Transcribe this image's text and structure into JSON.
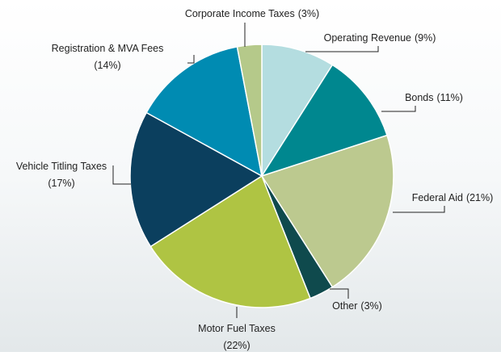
{
  "chart_data": {
    "type": "pie",
    "categories": [
      "Operating Revenue",
      "Bonds",
      "Federal Aid",
      "Other",
      "Motor Fuel Taxes",
      "Vehicle Titling Taxes",
      "Registration & MVA Fees",
      "Corporate Income Taxes"
    ],
    "values": [
      9,
      11,
      21,
      3,
      22,
      17,
      14,
      3
    ],
    "value_labels": [
      "(9%)",
      "(11%)",
      "(21%)",
      "(3%)",
      "(22%)",
      "(17%)",
      "(14%)",
      "(3%)"
    ],
    "colors": [
      "#b4dde0",
      "#00878f",
      "#bcc98f",
      "#0f4a4d",
      "#afc443",
      "#0b3f5e",
      "#008bb2",
      "#b5c98a"
    ]
  }
}
